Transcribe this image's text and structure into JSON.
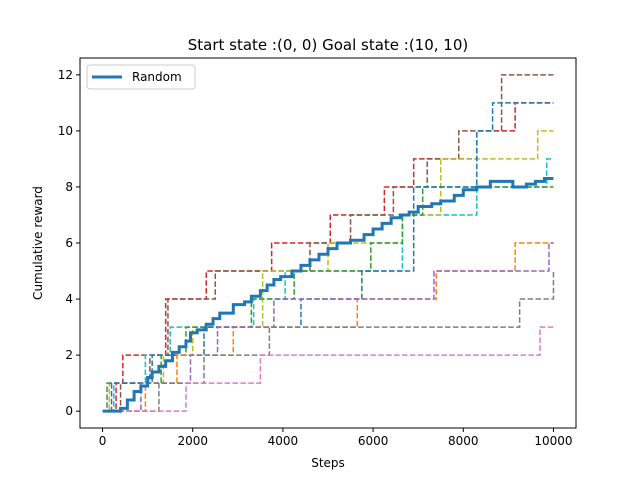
{
  "chart_data": {
    "type": "line",
    "title": "Start state :(0, 0) Goal state :(10, 10)",
    "xlabel": "Steps",
    "ylabel": "Cumulative reward",
    "xlim": [
      -500,
      10500
    ],
    "ylim": [
      -0.6,
      12.6
    ],
    "xticks": [
      0,
      2000,
      4000,
      6000,
      8000,
      10000
    ],
    "yticks": [
      0,
      2,
      4,
      6,
      8,
      10,
      12
    ],
    "xtick_labels": [
      "0",
      "2000",
      "4000",
      "6000",
      "8000",
      "10000"
    ],
    "ytick_labels": [
      "0",
      "2",
      "4",
      "6",
      "8",
      "10",
      "12"
    ],
    "grid": false,
    "legend": {
      "position": "top-left",
      "entries": [
        "Random"
      ]
    },
    "series": [
      {
        "name": "Random",
        "color": "#1f77b4",
        "style": "solid",
        "x": [
          0,
          250,
          400,
          550,
          700,
          850,
          1000,
          1100,
          1250,
          1400,
          1550,
          1700,
          1850,
          1950,
          2100,
          2300,
          2450,
          2600,
          2900,
          3150,
          3300,
          3500,
          3650,
          3800,
          3950,
          4200,
          4400,
          4600,
          4800,
          5000,
          5200,
          5500,
          5800,
          6000,
          6200,
          6400,
          6600,
          6800,
          7000,
          7300,
          7500,
          7800,
          8000,
          8300,
          8600,
          8900,
          9100,
          9400,
          9600,
          9800,
          10000
        ],
        "y": [
          0,
          0,
          0.1,
          0.4,
          0.7,
          0.9,
          1.2,
          1.4,
          1.6,
          1.8,
          2.1,
          2.3,
          2.5,
          2.8,
          2.9,
          3.1,
          3.3,
          3.5,
          3.8,
          3.9,
          4.1,
          4.3,
          4.5,
          4.7,
          4.8,
          5.0,
          5.2,
          5.4,
          5.6,
          5.8,
          6.0,
          6.1,
          6.3,
          6.5,
          6.7,
          6.9,
          7.0,
          7.1,
          7.3,
          7.4,
          7.5,
          7.7,
          7.9,
          8.0,
          8.2,
          8.2,
          8.0,
          8.1,
          8.2,
          8.3,
          8.3
        ]
      },
      {
        "color": "#d62728",
        "style": "dashed",
        "x": [
          0,
          300,
          450,
          900,
          1400,
          2300,
          3750,
          5050,
          5500,
          6250,
          6900,
          8300,
          9150,
          10000
        ],
        "y": [
          0,
          1,
          2,
          2,
          4,
          5,
          6,
          7,
          7,
          8,
          9,
          10,
          11,
          11
        ]
      },
      {
        "color": "#8c564b",
        "style": "dashed",
        "x": [
          0,
          400,
          1050,
          1450,
          2500,
          3400,
          4600,
          5500,
          6450,
          7200,
          7900,
          8850,
          10000
        ],
        "y": [
          0,
          1,
          2,
          4,
          5,
          5,
          6,
          7,
          8,
          9,
          10,
          12,
          12
        ]
      },
      {
        "color": "#17becf",
        "style": "dashed",
        "x": [
          0,
          250,
          550,
          950,
          1500,
          2000,
          3350,
          4050,
          5650,
          6650,
          8300,
          9500,
          9850,
          10000
        ],
        "y": [
          0,
          1,
          1,
          2,
          3,
          3,
          4,
          5,
          5,
          7,
          8,
          8,
          9,
          9
        ]
      },
      {
        "color": "#bcbd22",
        "style": "dashed",
        "x": [
          0,
          150,
          700,
          1350,
          2000,
          2850,
          3550,
          5000,
          6650,
          7500,
          9650,
          10000
        ],
        "y": [
          0,
          1,
          1,
          2,
          3,
          3,
          5,
          6,
          7,
          9,
          10,
          10
        ]
      },
      {
        "color": "#2ca02c",
        "style": "dashed",
        "x": [
          0,
          100,
          600,
          1300,
          1850,
          2250,
          3300,
          4250,
          5950,
          6650,
          7100,
          9100,
          10000
        ],
        "y": [
          0,
          1,
          1,
          2,
          3,
          3,
          4,
          5,
          6,
          7,
          8,
          8,
          8
        ]
      },
      {
        "color": "#1f77b4",
        "style": "dashed",
        "x": [
          0,
          200,
          750,
          1100,
          1650,
          2250,
          3100,
          4400,
          5750,
          6900,
          8300,
          8650,
          9000,
          10000
        ],
        "y": [
          0,
          1,
          1,
          2,
          2,
          3,
          3,
          4,
          5,
          8,
          10,
          11,
          11,
          11
        ]
      },
      {
        "color": "#ff7f0e",
        "style": "dashed",
        "x": [
          0,
          300,
          950,
          1650,
          2900,
          5650,
          7400,
          9150,
          9600,
          10000
        ],
        "y": [
          0,
          0,
          1,
          2,
          3,
          4,
          5,
          6,
          6,
          6
        ]
      },
      {
        "color": "#9467bd",
        "style": "dashed",
        "x": [
          0,
          350,
          850,
          1150,
          1950,
          2550,
          3800,
          4350,
          5300,
          7350,
          9900,
          10000
        ],
        "y": [
          0,
          0,
          1,
          1,
          2,
          3,
          4,
          4,
          4,
          5,
          6,
          6
        ]
      },
      {
        "color": "#7f7f7f",
        "style": "dashed",
        "x": [
          0,
          350,
          1250,
          2250,
          3700,
          4300,
          7450,
          8000,
          9250,
          10000
        ],
        "y": [
          0,
          0,
          1,
          2,
          3,
          3,
          3,
          3,
          4,
          5
        ]
      },
      {
        "color": "#e377c2",
        "style": "dashed",
        "x": [
          0,
          400,
          1850,
          3500,
          9700,
          10000
        ],
        "y": [
          0,
          0,
          1,
          2,
          3,
          3
        ]
      }
    ]
  }
}
